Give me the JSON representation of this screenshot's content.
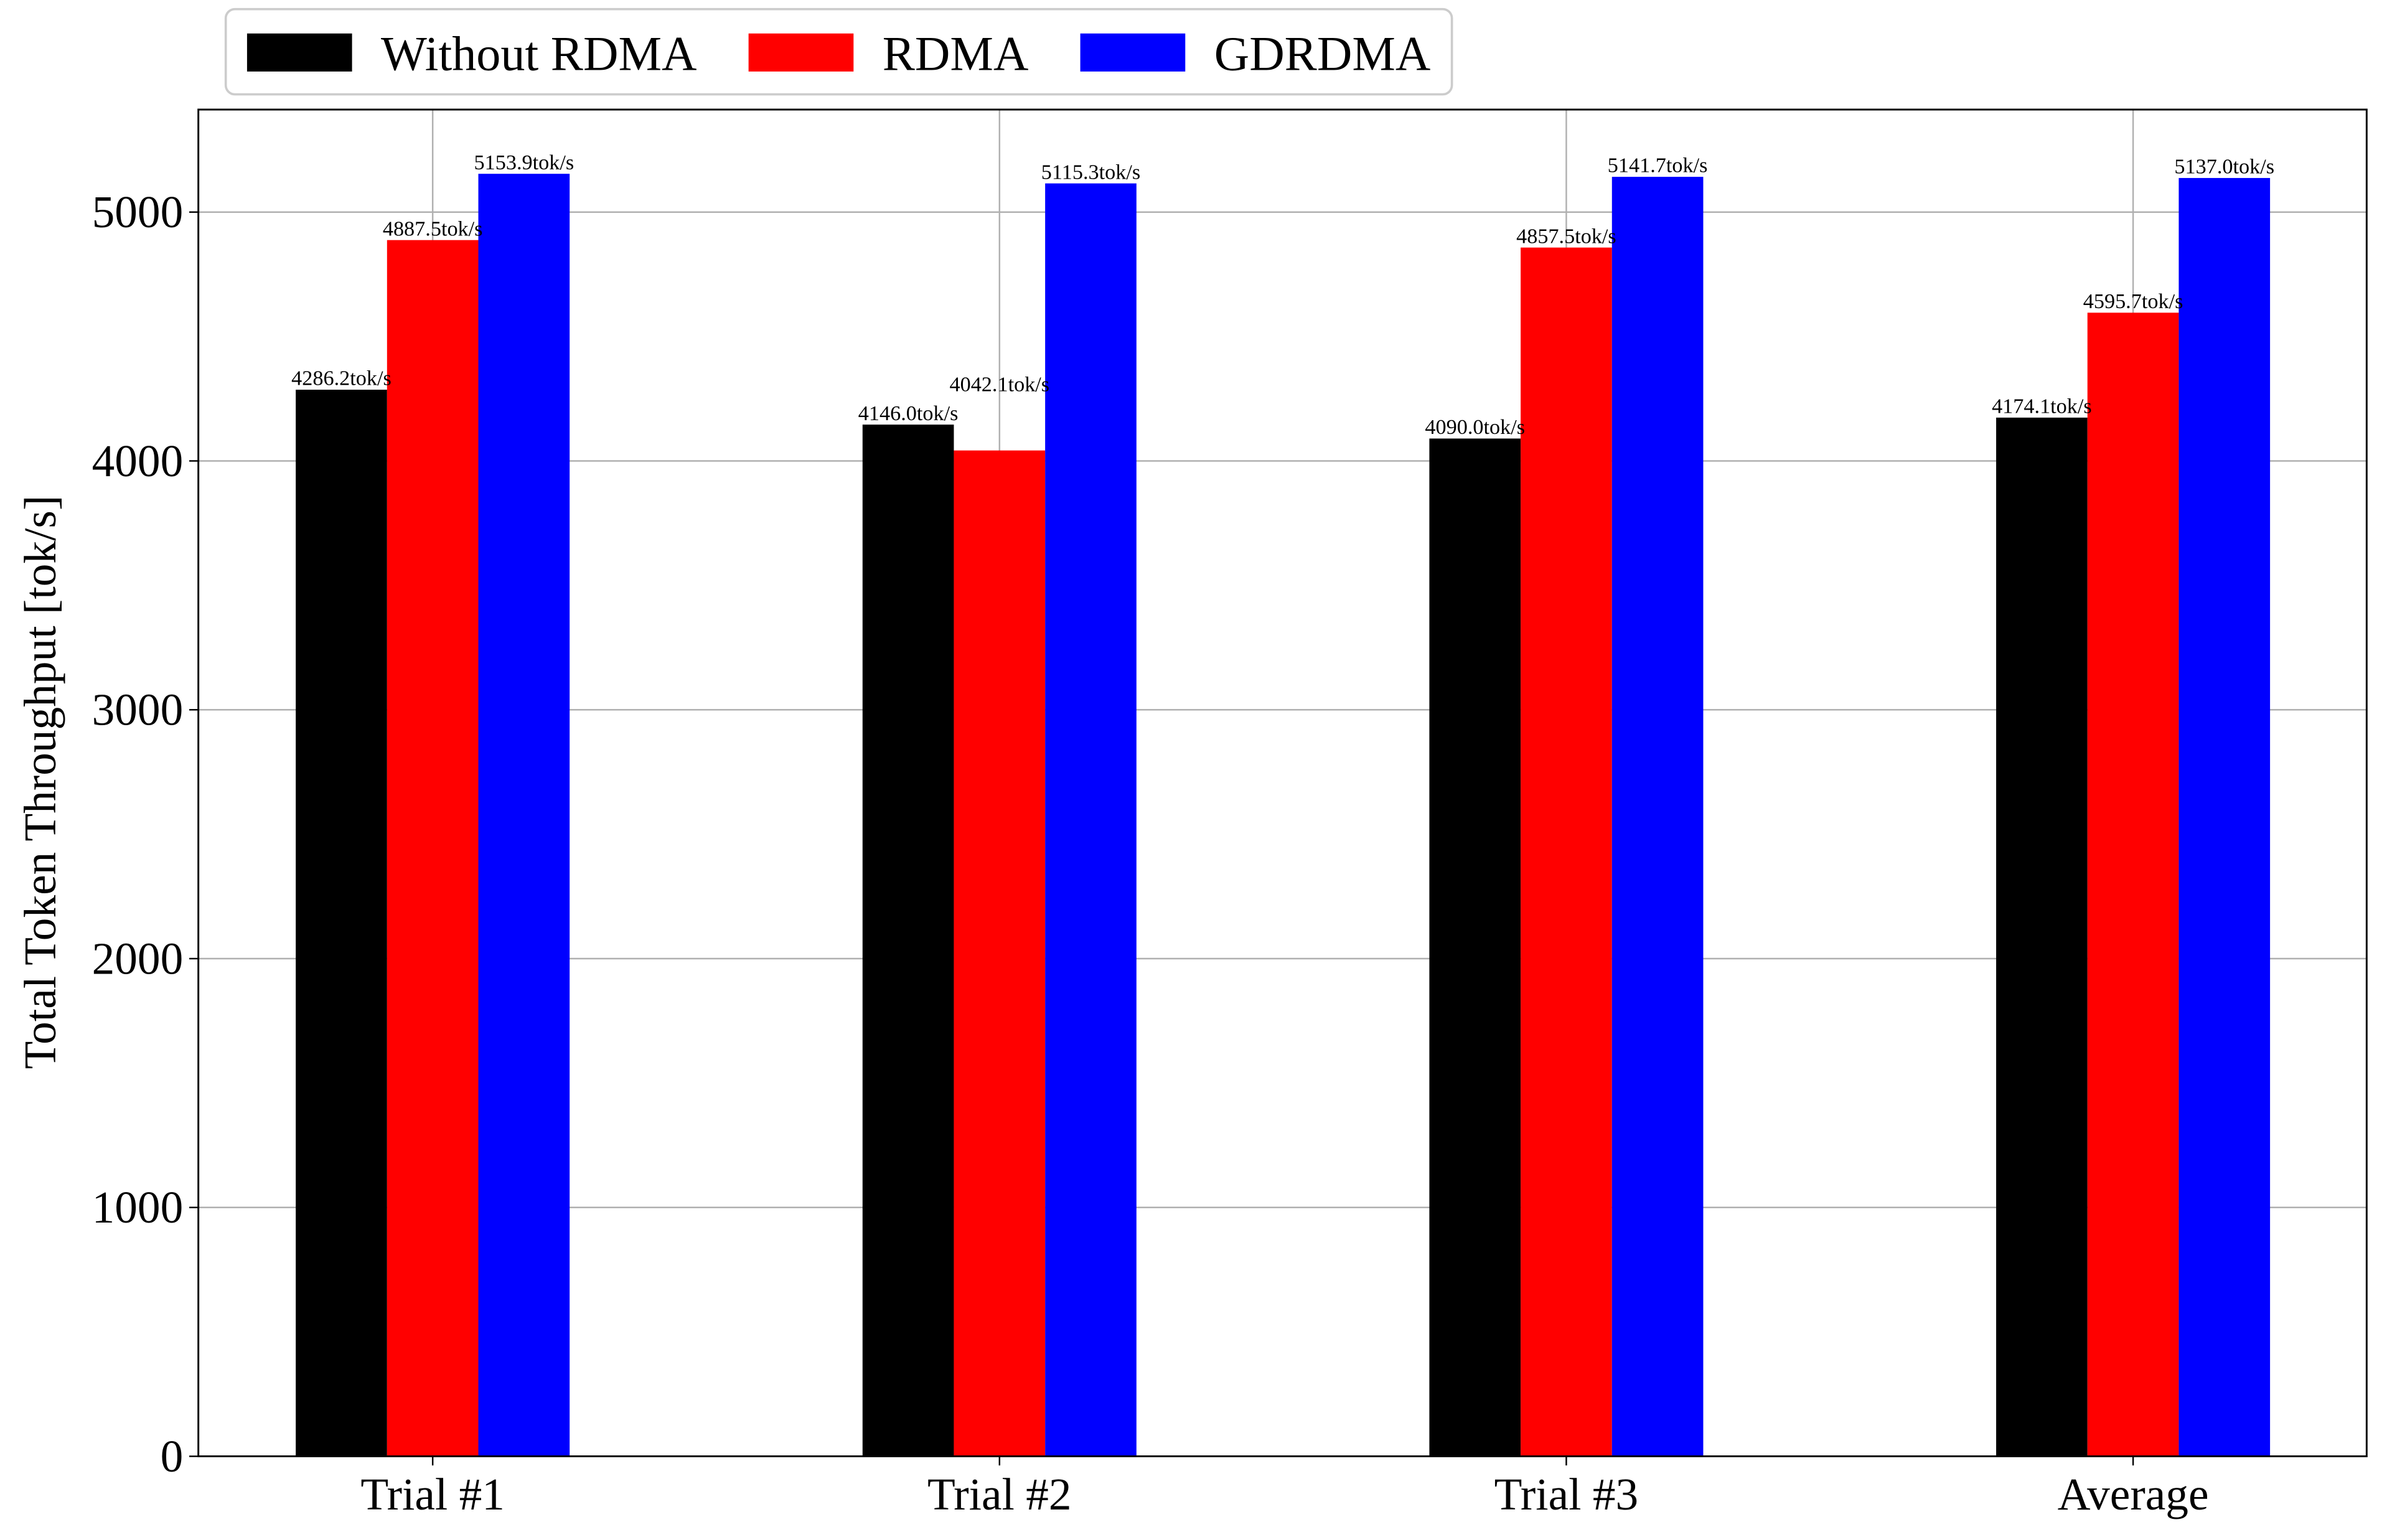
{
  "chart_data": {
    "type": "bar",
    "title": "",
    "xlabel": "",
    "ylabel": "Total Token Throughput [tok/s]",
    "categories": [
      "Trial #1",
      "Trial #2",
      "Trial #3",
      "Average"
    ],
    "series": [
      {
        "name": "Without RDMA",
        "color": "#000000",
        "values": [
          4286.2,
          4146.0,
          4090.0,
          4174.1
        ],
        "labels": [
          "4286.2tok/s",
          "4146.0tok/s",
          "4090.0tok/s",
          "4174.1tok/s"
        ]
      },
      {
        "name": "RDMA",
        "color": "#ff0000",
        "values": [
          4887.5,
          4042.1,
          4857.5,
          4595.7
        ],
        "labels": [
          "4887.5tok/s",
          "4042.1tok/s",
          "4857.5tok/s",
          "4595.7tok/s"
        ]
      },
      {
        "name": "GDRDMA",
        "color": "#0000ff",
        "values": [
          5153.9,
          5115.3,
          5141.7,
          5137.0
        ],
        "labels": [
          "5153.9tok/s",
          "5115.3tok/s",
          "5141.7tok/s",
          "5137.0tok/s"
        ]
      }
    ],
    "ylim": [
      0,
      5412
    ],
    "yticks": [
      0,
      1000,
      2000,
      3000,
      4000,
      5000
    ],
    "ytick_labels": [
      "0",
      "1000",
      "2000",
      "3000",
      "4000",
      "5000"
    ],
    "grid": true,
    "legend_position": "top-left"
  }
}
